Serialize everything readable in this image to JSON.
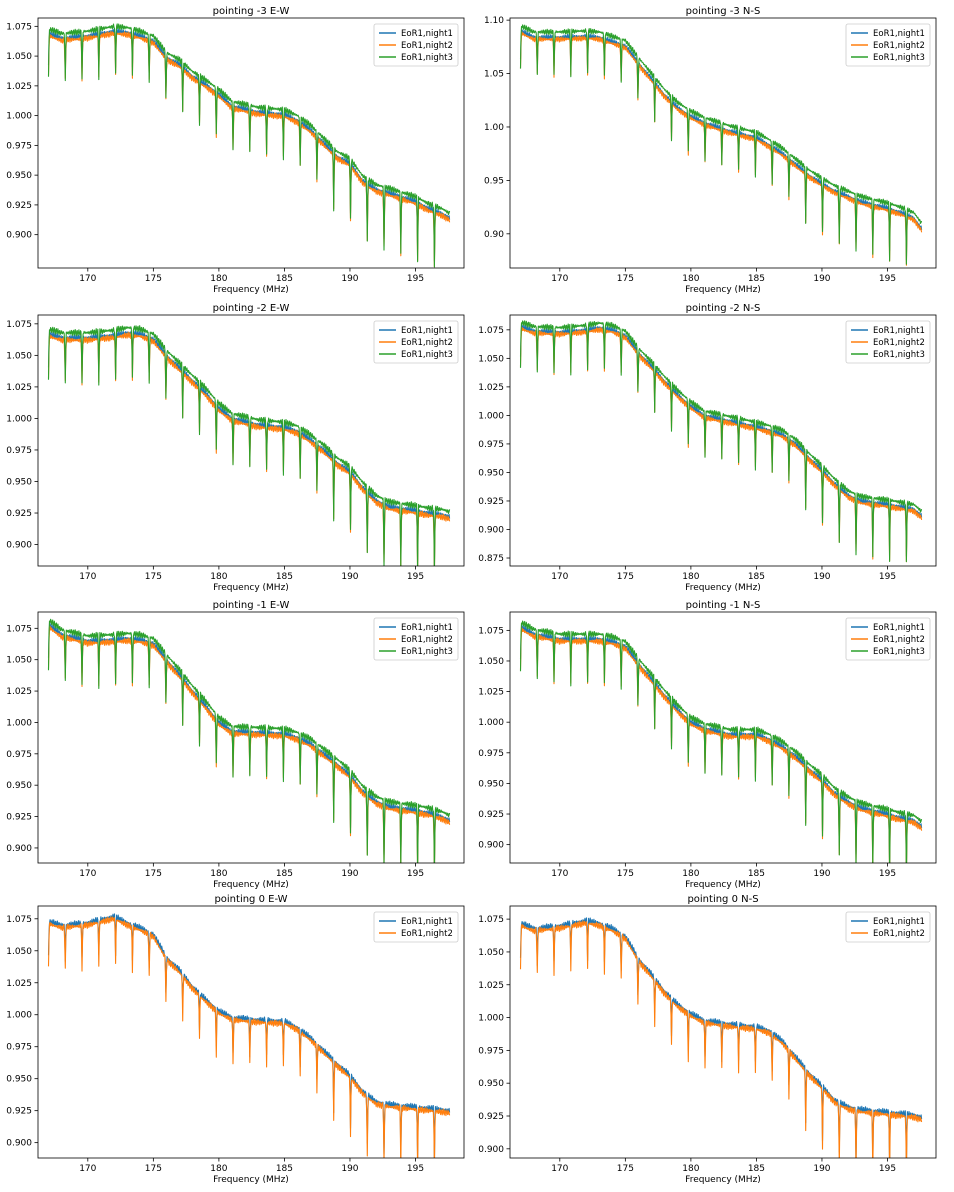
{
  "figure": {
    "colors": {
      "night1": "#1f77b4",
      "night2": "#ff7f0e",
      "night3": "#2ca02c"
    },
    "x_ticks": [
      170,
      175,
      180,
      185,
      190,
      195
    ]
  },
  "chart_data": [
    {
      "type": "line",
      "title": "pointing -3 E-W",
      "xlabel": "Frequency (MHz)",
      "ylabel": "",
      "xlim": [
        166.2,
        198.7
      ],
      "ylim": [
        0.872,
        1.082
      ],
      "y_ticks": [
        "0.900",
        "0.925",
        "0.950",
        "0.975",
        "1.000",
        "1.025",
        "1.050",
        "1.075"
      ],
      "y_tick_values": [
        0.9,
        0.925,
        0.95,
        0.975,
        1.0,
        1.025,
        1.05,
        1.075
      ],
      "legend": [
        "EoR1,night1",
        "EoR1,night2",
        "EoR1,night3"
      ],
      "legend_loc": "upper right",
      "envelope_x": [
        167,
        168,
        170,
        172,
        173,
        174,
        175,
        176,
        177,
        178,
        179,
        180,
        181,
        183,
        185,
        186,
        187,
        188,
        189,
        190,
        191,
        192,
        193,
        195,
        196,
        197,
        197.6
      ],
      "envelope_y": [
        1.069,
        1.065,
        1.067,
        1.071,
        1.07,
        1.067,
        1.063,
        1.049,
        1.043,
        1.033,
        1.026,
        1.018,
        1.008,
        1.003,
        1.001,
        0.996,
        0.988,
        0.977,
        0.966,
        0.96,
        0.945,
        0.938,
        0.935,
        0.928,
        0.922,
        0.918,
        0.914
      ],
      "offsets": [
        0.0,
        -0.002,
        0.004
      ]
    },
    {
      "type": "line",
      "title": "pointing -3 N-S",
      "xlabel": "Frequency (MHz)",
      "ylabel": "",
      "xlim": [
        166.2,
        198.7
      ],
      "ylim": [
        0.868,
        1.102
      ],
      "y_ticks": [
        "0.90",
        "0.95",
        "1.00",
        "1.05",
        "1.10"
      ],
      "y_tick_values": [
        0.9,
        0.95,
        1.0,
        1.05,
        1.1
      ],
      "legend": [
        "EoR1,night1",
        "EoR1,night2",
        "EoR1,night3"
      ],
      "legend_loc": "upper right",
      "envelope_x": [
        167,
        168,
        170,
        172,
        173,
        174,
        175,
        176,
        177,
        178,
        179,
        180,
        181,
        183,
        185,
        186,
        187,
        188,
        189,
        190,
        191,
        192,
        193,
        195,
        196,
        197,
        197.6
      ],
      "envelope_y": [
        1.09,
        1.084,
        1.084,
        1.085,
        1.084,
        1.08,
        1.076,
        1.06,
        1.045,
        1.03,
        1.018,
        1.01,
        1.004,
        0.996,
        0.99,
        0.983,
        0.975,
        0.965,
        0.955,
        0.947,
        0.94,
        0.935,
        0.93,
        0.924,
        0.92,
        0.915,
        0.905
      ],
      "offsets": [
        0.0,
        -0.002,
        0.005
      ]
    },
    {
      "type": "line",
      "title": "pointing -2 E-W",
      "xlabel": "Frequency (MHz)",
      "ylabel": "",
      "xlim": [
        166.2,
        198.7
      ],
      "ylim": [
        0.883,
        1.082
      ],
      "y_ticks": [
        "0.900",
        "0.925",
        "0.950",
        "0.975",
        "1.000",
        "1.025",
        "1.050",
        "1.075"
      ],
      "y_tick_values": [
        0.9,
        0.925,
        0.95,
        0.975,
        1.0,
        1.025,
        1.05,
        1.075
      ],
      "legend": [
        "EoR1,night1",
        "EoR1,night2",
        "EoR1,night3"
      ],
      "legend_loc": "upper right",
      "envelope_x": [
        167,
        168,
        170,
        172,
        173,
        174,
        175,
        176,
        177,
        178,
        179,
        180,
        181,
        183,
        185,
        186,
        187,
        188,
        189,
        190,
        191,
        192,
        193,
        195,
        196,
        197,
        197.6
      ],
      "envelope_y": [
        1.067,
        1.064,
        1.064,
        1.066,
        1.068,
        1.067,
        1.063,
        1.05,
        1.04,
        1.03,
        1.02,
        1.008,
        1.0,
        0.995,
        0.993,
        0.99,
        0.983,
        0.975,
        0.965,
        0.958,
        0.945,
        0.935,
        0.93,
        0.927,
        0.925,
        0.924,
        0.922
      ],
      "offsets": [
        0.0,
        -0.002,
        0.004
      ]
    },
    {
      "type": "line",
      "title": "pointing -2 N-S",
      "xlabel": "Frequency (MHz)",
      "ylabel": "",
      "xlim": [
        166.2,
        198.7
      ],
      "ylim": [
        0.868,
        1.088
      ],
      "y_ticks": [
        "0.875",
        "0.900",
        "0.925",
        "0.950",
        "0.975",
        "1.000",
        "1.025",
        "1.050",
        "1.075"
      ],
      "y_tick_values": [
        0.875,
        0.9,
        0.925,
        0.95,
        0.975,
        1.0,
        1.025,
        1.05,
        1.075
      ],
      "legend": [
        "EoR1,night1",
        "EoR1,night2",
        "EoR1,night3"
      ],
      "legend_loc": "upper right",
      "envelope_x": [
        167,
        168,
        170,
        172,
        173,
        174,
        175,
        176,
        177,
        178,
        179,
        180,
        181,
        183,
        185,
        186,
        187,
        188,
        189,
        190,
        191,
        192,
        193,
        195,
        196,
        197,
        197.6
      ],
      "envelope_y": [
        1.078,
        1.074,
        1.073,
        1.075,
        1.077,
        1.075,
        1.07,
        1.055,
        1.043,
        1.03,
        1.018,
        1.008,
        1.0,
        0.995,
        0.99,
        0.987,
        0.983,
        0.975,
        0.963,
        0.952,
        0.94,
        0.93,
        0.925,
        0.922,
        0.92,
        0.918,
        0.912
      ],
      "offsets": [
        0.0,
        -0.002,
        0.004
      ]
    },
    {
      "type": "line",
      "title": "pointing -1 E-W",
      "xlabel": "Frequency (MHz)",
      "ylabel": "",
      "xlim": [
        166.2,
        198.7
      ],
      "ylim": [
        0.888,
        1.088
      ],
      "y_ticks": [
        "0.900",
        "0.925",
        "0.950",
        "0.975",
        "1.000",
        "1.025",
        "1.050",
        "1.075"
      ],
      "y_tick_values": [
        0.9,
        0.925,
        0.95,
        0.975,
        1.0,
        1.025,
        1.05,
        1.075
      ],
      "legend": [
        "EoR1,night1",
        "EoR1,night2",
        "EoR1,night3"
      ],
      "legend_loc": "upper right",
      "envelope_x": [
        167,
        168,
        170,
        172,
        173,
        174,
        175,
        176,
        177,
        178,
        179,
        180,
        181,
        183,
        185,
        186,
        187,
        188,
        189,
        190,
        191,
        192,
        193,
        195,
        196,
        197,
        197.6
      ],
      "envelope_y": [
        1.078,
        1.07,
        1.065,
        1.066,
        1.067,
        1.066,
        1.063,
        1.05,
        1.038,
        1.025,
        1.013,
        1.0,
        0.993,
        0.992,
        0.991,
        0.988,
        0.983,
        0.975,
        0.967,
        0.958,
        0.945,
        0.937,
        0.933,
        0.93,
        0.928,
        0.925,
        0.922
      ],
      "offsets": [
        0.0,
        -0.002,
        0.004
      ]
    },
    {
      "type": "line",
      "title": "pointing -1 N-S",
      "xlabel": "Frequency (MHz)",
      "ylabel": "",
      "xlim": [
        166.2,
        198.7
      ],
      "ylim": [
        0.885,
        1.09
      ],
      "y_ticks": [
        "0.900",
        "0.925",
        "0.950",
        "0.975",
        "1.000",
        "1.025",
        "1.050",
        "1.075"
      ],
      "y_tick_values": [
        0.9,
        0.925,
        0.95,
        0.975,
        1.0,
        1.025,
        1.05,
        1.075
      ],
      "legend": [
        "EoR1,night1",
        "EoR1,night2",
        "EoR1,night3"
      ],
      "legend_loc": "upper right",
      "envelope_x": [
        167,
        168,
        170,
        172,
        173,
        174,
        175,
        176,
        177,
        178,
        179,
        180,
        181,
        183,
        185,
        186,
        187,
        188,
        189,
        190,
        191,
        192,
        193,
        195,
        196,
        197,
        197.6
      ],
      "envelope_y": [
        1.078,
        1.072,
        1.068,
        1.068,
        1.068,
        1.066,
        1.062,
        1.048,
        1.035,
        1.022,
        1.01,
        1.0,
        0.995,
        0.99,
        0.99,
        0.986,
        0.98,
        0.972,
        0.962,
        0.953,
        0.942,
        0.935,
        0.93,
        0.925,
        0.922,
        0.92,
        0.915
      ],
      "offsets": [
        0.0,
        -0.002,
        0.004
      ]
    },
    {
      "type": "line",
      "title": "pointing 0 E-W",
      "xlabel": "Frequency (MHz)",
      "ylabel": "",
      "xlim": [
        166.2,
        198.7
      ],
      "ylim": [
        0.888,
        1.085
      ],
      "y_ticks": [
        "0.900",
        "0.925",
        "0.950",
        "0.975",
        "1.000",
        "1.025",
        "1.050",
        "1.075"
      ],
      "y_tick_values": [
        0.9,
        0.925,
        0.95,
        0.975,
        1.0,
        1.025,
        1.05,
        1.075
      ],
      "legend": [
        "EoR1,night1",
        "EoR1,night2"
      ],
      "legend_loc": "upper right",
      "envelope_x": [
        167,
        168,
        170,
        172,
        173,
        174,
        175,
        176,
        177,
        178,
        179,
        180,
        181,
        183,
        185,
        186,
        187,
        188,
        189,
        190,
        191,
        192,
        193,
        195,
        196,
        197,
        197.6
      ],
      "envelope_y": [
        1.073,
        1.07,
        1.072,
        1.077,
        1.072,
        1.068,
        1.063,
        1.045,
        1.035,
        1.022,
        1.012,
        1.003,
        0.998,
        0.996,
        0.995,
        0.99,
        0.982,
        0.972,
        0.962,
        0.953,
        0.94,
        0.932,
        0.93,
        0.928,
        0.927,
        0.926,
        0.925
      ],
      "offsets": [
        0.0,
        -0.002
      ]
    },
    {
      "type": "line",
      "title": "pointing 0 N-S",
      "xlabel": "Frequency (MHz)",
      "ylabel": "",
      "xlim": [
        166.2,
        198.7
      ],
      "ylim": [
        0.893,
        1.085
      ],
      "y_ticks": [
        "0.900",
        "0.925",
        "0.950",
        "0.975",
        "1.000",
        "1.025",
        "1.050",
        "1.075"
      ],
      "y_tick_values": [
        0.9,
        0.925,
        0.95,
        0.975,
        1.0,
        1.025,
        1.05,
        1.075
      ],
      "legend": [
        "EoR1,night1",
        "EoR1,night2"
      ],
      "legend_loc": "upper right",
      "envelope_x": [
        167,
        168,
        170,
        172,
        173,
        174,
        175,
        176,
        177,
        178,
        179,
        180,
        181,
        183,
        185,
        186,
        187,
        188,
        189,
        190,
        191,
        192,
        193,
        195,
        196,
        197,
        197.6
      ],
      "envelope_y": [
        1.072,
        1.068,
        1.07,
        1.074,
        1.072,
        1.068,
        1.062,
        1.045,
        1.033,
        1.02,
        1.01,
        1.003,
        0.998,
        0.995,
        0.993,
        0.99,
        0.982,
        0.97,
        0.958,
        0.948,
        0.937,
        0.932,
        0.93,
        0.928,
        0.927,
        0.926,
        0.924
      ],
      "offsets": [
        0.0,
        -0.002
      ]
    }
  ]
}
